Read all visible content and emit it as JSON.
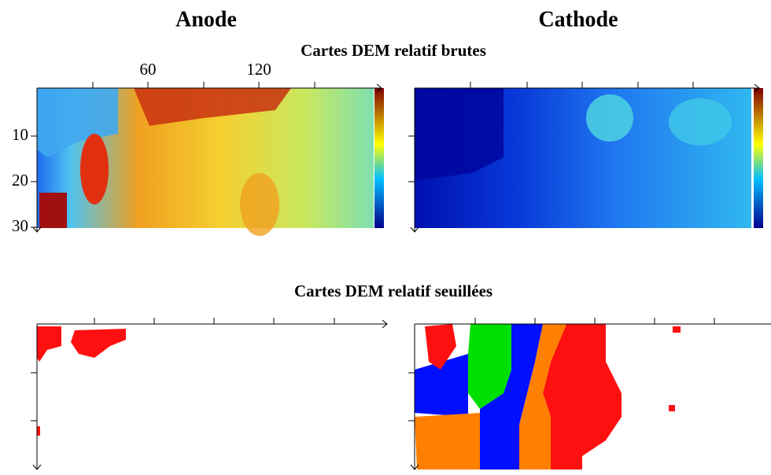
{
  "columns": [
    "Anode",
    "Cathode"
  ],
  "rows": [
    {
      "title": "Cartes DEM relatif brutes"
    },
    {
      "title": "Cartes DEM relatif seuillées"
    }
  ],
  "axes": {
    "xticks": [
      60,
      120
    ],
    "yticks": [
      10,
      20,
      30
    ]
  }
}
